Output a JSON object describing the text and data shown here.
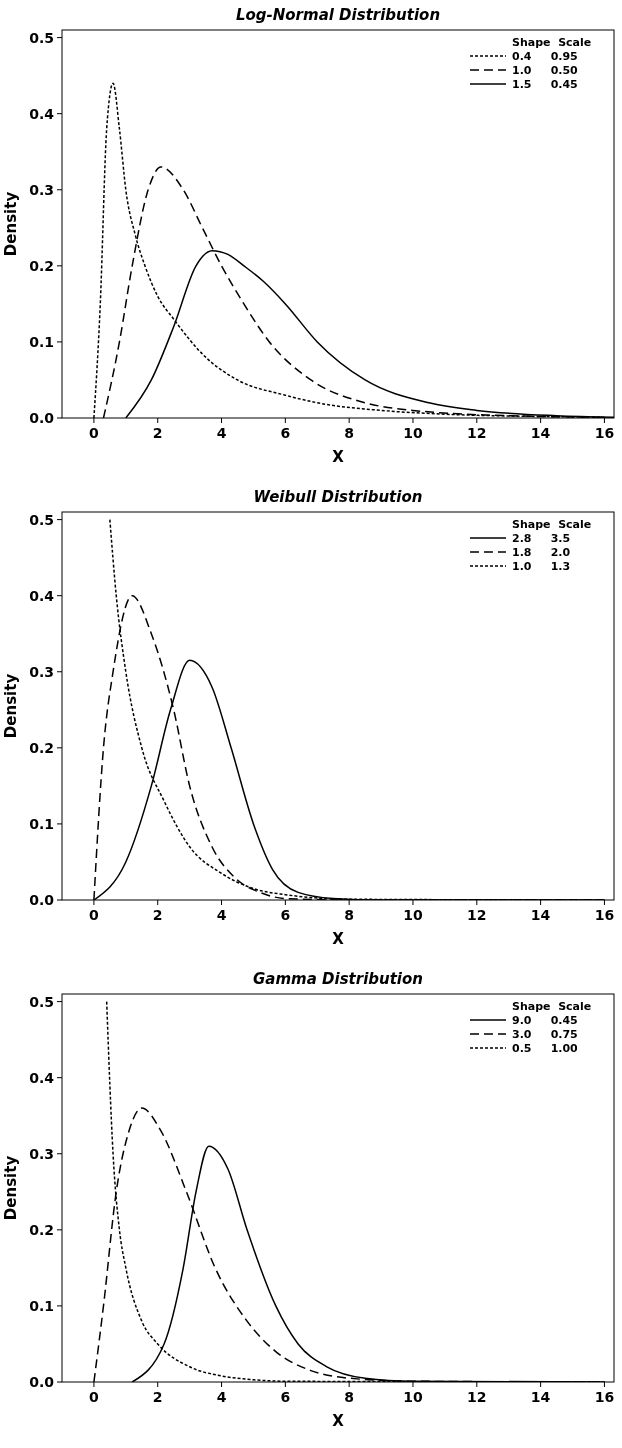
{
  "chart_data": [
    {
      "type": "line",
      "title": "Log-Normal Distribution",
      "xlabel": "X",
      "ylabel": "Density",
      "legend_title": "Shape  Scale",
      "legend": "top right",
      "xlim": [
        -1,
        16.3
      ],
      "ylim": [
        0,
        0.51
      ],
      "xticks": [
        0,
        2,
        4,
        6,
        8,
        10,
        12,
        14,
        16
      ],
      "yticks": [
        {
          "value": 0,
          "label": "0.0"
        },
        {
          "value": 0.1,
          "label": "0.1"
        },
        {
          "value": 0.2,
          "label": "0.2"
        },
        {
          "value": 0.3,
          "label": "0.3"
        },
        {
          "value": 0.4,
          "label": "0.4"
        },
        {
          "value": 0.5,
          "label": "0.5"
        }
      ],
      "series": [
        {
          "name": "0.4     0.95",
          "color": "#000000",
          "line_style": "dotted",
          "x": [
            0,
            0.2,
            0.4,
            0.6,
            0.8,
            1.0,
            1.3,
            1.6,
            2.0,
            2.5,
            3.5,
            4.5,
            6,
            7,
            9,
            11,
            14,
            16
          ],
          "values": [
            0,
            0.15,
            0.38,
            0.44,
            0.38,
            0.3,
            0.24,
            0.2,
            0.16,
            0.13,
            0.08,
            0.05,
            0.03,
            0.02,
            0.01,
            0.005,
            0.002,
            0.001
          ]
        },
        {
          "name": "1.0     0.50",
          "color": "#000000",
          "line_style": "dashed",
          "x": [
            0.3,
            0.8,
            1.2,
            1.7,
            2.1,
            2.8,
            3.4,
            4.0,
            4.7,
            5.5,
            6.8,
            8.5,
            10,
            13,
            16
          ],
          "values": [
            0,
            0.1,
            0.2,
            0.3,
            0.33,
            0.3,
            0.25,
            0.2,
            0.15,
            0.1,
            0.05,
            0.02,
            0.01,
            0.003,
            0.001
          ]
        },
        {
          "name": "1.5     0.45",
          "color": "#000000",
          "line_style": "solid",
          "x": [
            1.0,
            1.8,
            2.5,
            3.2,
            3.7,
            4.2,
            4.7,
            5.3,
            6,
            7,
            8.5,
            10.5,
            12,
            14.5,
            16.3
          ],
          "values": [
            0,
            0.05,
            0.12,
            0.2,
            0.22,
            0.215,
            0.2,
            0.18,
            0.15,
            0.1,
            0.05,
            0.02,
            0.01,
            0.003,
            0.001
          ]
        }
      ]
    },
    {
      "type": "line",
      "title": "Weibull Distribution",
      "xlabel": "X",
      "ylabel": "Density",
      "legend_title": "Shape  Scale",
      "legend": "top right",
      "xlim": [
        -1,
        16.3
      ],
      "ylim": [
        0,
        0.51
      ],
      "xticks": [
        0,
        2,
        4,
        6,
        8,
        10,
        12,
        14,
        16
      ],
      "yticks": [
        {
          "value": 0,
          "label": "0.0"
        },
        {
          "value": 0.1,
          "label": "0.1"
        },
        {
          "value": 0.2,
          "label": "0.2"
        },
        {
          "value": 0.3,
          "label": "0.3"
        },
        {
          "value": 0.4,
          "label": "0.4"
        },
        {
          "value": 0.5,
          "label": "0.5"
        }
      ],
      "series": [
        {
          "name": "2.8     3.5",
          "color": "#000000",
          "line_style": "solid",
          "x": [
            0,
            1.0,
            1.8,
            2.4,
            3.0,
            3.7,
            4.3,
            5.0,
            5.6,
            6.4,
            7.5,
            9,
            16
          ],
          "values": [
            0,
            0.05,
            0.15,
            0.25,
            0.315,
            0.28,
            0.2,
            0.1,
            0.04,
            0.01,
            0.002,
            0,
            0
          ]
        },
        {
          "name": "1.8     2.0",
          "color": "#000000",
          "line_style": "dashed",
          "x": [
            0,
            0.3,
            0.6,
            1.2,
            1.8,
            2.5,
            3.0,
            3.7,
            4.4,
            5.2,
            6,
            8,
            16
          ],
          "values": [
            0,
            0.2,
            0.3,
            0.4,
            0.35,
            0.25,
            0.15,
            0.07,
            0.03,
            0.01,
            0.002,
            0,
            0
          ]
        },
        {
          "name": "1.0     1.3",
          "color": "#000000",
          "line_style": "dotted",
          "x": [
            0.5,
            0.7,
            1.0,
            1.5,
            2.2,
            3,
            4,
            5,
            6,
            8,
            16
          ],
          "values": [
            0.5,
            0.4,
            0.3,
            0.2,
            0.13,
            0.07,
            0.035,
            0.015,
            0.007,
            0.001,
            0
          ]
        }
      ]
    },
    {
      "type": "line",
      "title": "Gamma Distribution",
      "xlabel": "X",
      "ylabel": "Density",
      "legend_title": "Shape  Scale",
      "legend": "top right",
      "xlim": [
        -1,
        16.3
      ],
      "ylim": [
        0,
        0.51
      ],
      "xticks": [
        0,
        2,
        4,
        6,
        8,
        10,
        12,
        14,
        16
      ],
      "yticks": [
        {
          "value": 0,
          "label": "0.0"
        },
        {
          "value": 0.1,
          "label": "0.1"
        },
        {
          "value": 0.2,
          "label": "0.2"
        },
        {
          "value": 0.3,
          "label": "0.3"
        },
        {
          "value": 0.4,
          "label": "0.4"
        },
        {
          "value": 0.5,
          "label": "0.5"
        }
      ],
      "series": [
        {
          "name": "9.0     0.45",
          "color": "#000000",
          "line_style": "solid",
          "x": [
            1.2,
            2.2,
            2.8,
            3.2,
            3.6,
            4.2,
            4.8,
            5.7,
            6.4,
            7.3,
            8.5,
            10,
            16
          ],
          "values": [
            0,
            0.05,
            0.15,
            0.25,
            0.31,
            0.28,
            0.2,
            0.1,
            0.05,
            0.02,
            0.005,
            0.001,
            0
          ]
        },
        {
          "name": "3.0     0.75",
          "color": "#000000",
          "line_style": "dashed",
          "x": [
            0,
            0.3,
            0.7,
            1.1,
            1.5,
            2.1,
            2.9,
            3.8,
            4.8,
            5.7,
            6.8,
            8,
            10,
            16
          ],
          "values": [
            0,
            0.1,
            0.25,
            0.33,
            0.36,
            0.33,
            0.25,
            0.15,
            0.08,
            0.04,
            0.015,
            0.005,
            0.001,
            0
          ]
        },
        {
          "name": "0.5     1.00",
          "color": "#000000",
          "line_style": "dotted",
          "x": [
            0.4,
            0.6,
            0.8,
            1.0,
            1.5,
            2,
            3,
            4,
            5,
            6,
            16
          ],
          "values": [
            0.5,
            0.3,
            0.2,
            0.15,
            0.08,
            0.05,
            0.02,
            0.008,
            0.003,
            0.001,
            0
          ]
        }
      ]
    }
  ]
}
